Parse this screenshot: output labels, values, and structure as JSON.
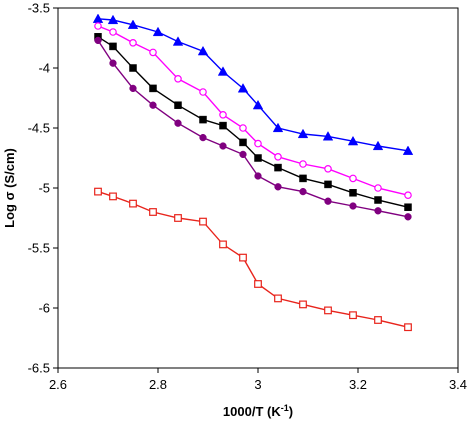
{
  "chart_data": {
    "type": "line",
    "title": "",
    "xlabel_main": "1000/T (K",
    "xlabel_sup": "-1",
    "xlabel_close": ")",
    "ylabel": "Log σ (S/cm)",
    "xlim": [
      2.6,
      3.4
    ],
    "ylim": [
      -6.5,
      -3.5
    ],
    "x_ticks": [
      {
        "value": 2.6,
        "label": "2.6"
      },
      {
        "value": 2.8,
        "label": "2.8"
      },
      {
        "value": 3.0,
        "label": "3"
      },
      {
        "value": 3.2,
        "label": "3.2"
      },
      {
        "value": 3.4,
        "label": "3.4"
      }
    ],
    "y_ticks": [
      {
        "value": -3.5,
        "label": "-3.5"
      },
      {
        "value": -4.0,
        "label": "-4"
      },
      {
        "value": -4.5,
        "label": "-4.5"
      },
      {
        "value": -5.0,
        "label": "-5"
      },
      {
        "value": -5.5,
        "label": "-5.5"
      },
      {
        "value": -6.0,
        "label": "-6"
      },
      {
        "value": -6.5,
        "label": "-6.5"
      }
    ],
    "grid": false,
    "series": [
      {
        "color": "#0000ff",
        "marker": "triangle-filled",
        "x": [
          2.68,
          2.71,
          2.75,
          2.8,
          2.84,
          2.89,
          2.93,
          2.97,
          3.0,
          3.04,
          3.09,
          3.14,
          3.19,
          3.24,
          3.3
        ],
        "y": [
          -3.59,
          -3.6,
          -3.64,
          -3.7,
          -3.78,
          -3.86,
          -4.03,
          -4.17,
          -4.31,
          -4.5,
          -4.55,
          -4.57,
          -4.61,
          -4.65,
          -4.69
        ]
      },
      {
        "color": "#ff00ff",
        "marker": "circle-open",
        "x": [
          2.68,
          2.71,
          2.75,
          2.79,
          2.84,
          2.89,
          2.93,
          2.97,
          3.0,
          3.04,
          3.09,
          3.14,
          3.19,
          3.24,
          3.3
        ],
        "y": [
          -3.65,
          -3.7,
          -3.79,
          -3.87,
          -4.09,
          -4.2,
          -4.39,
          -4.5,
          -4.63,
          -4.74,
          -4.8,
          -4.84,
          -4.92,
          -5.0,
          -5.06
        ]
      },
      {
        "color": "#000000",
        "marker": "square-filled",
        "x": [
          2.68,
          2.71,
          2.75,
          2.79,
          2.84,
          2.89,
          2.93,
          2.97,
          3.0,
          3.04,
          3.09,
          3.14,
          3.19,
          3.24,
          3.3
        ],
        "y": [
          -3.74,
          -3.82,
          -4.0,
          -4.17,
          -4.31,
          -4.43,
          -4.48,
          -4.62,
          -4.75,
          -4.83,
          -4.92,
          -4.97,
          -5.04,
          -5.1,
          -5.16
        ]
      },
      {
        "color": "#800080",
        "marker": "circle-filled",
        "x": [
          2.68,
          2.71,
          2.75,
          2.79,
          2.84,
          2.89,
          2.93,
          2.97,
          3.0,
          3.04,
          3.09,
          3.14,
          3.19,
          3.24,
          3.3
        ],
        "y": [
          -3.77,
          -3.96,
          -4.17,
          -4.31,
          -4.46,
          -4.58,
          -4.65,
          -4.72,
          -4.9,
          -4.99,
          -5.03,
          -5.11,
          -5.15,
          -5.19,
          -5.24
        ]
      },
      {
        "color": "#e8241c",
        "marker": "square-open",
        "x": [
          2.68,
          2.71,
          2.75,
          2.79,
          2.84,
          2.89,
          2.93,
          2.97,
          3.0,
          3.04,
          3.09,
          3.14,
          3.19,
          3.24,
          3.3
        ],
        "y": [
          -5.03,
          -5.07,
          -5.13,
          -5.2,
          -5.25,
          -5.28,
          -5.47,
          -5.58,
          -5.8,
          -5.92,
          -5.97,
          -6.02,
          -6.06,
          -6.1,
          -6.16
        ]
      }
    ]
  }
}
